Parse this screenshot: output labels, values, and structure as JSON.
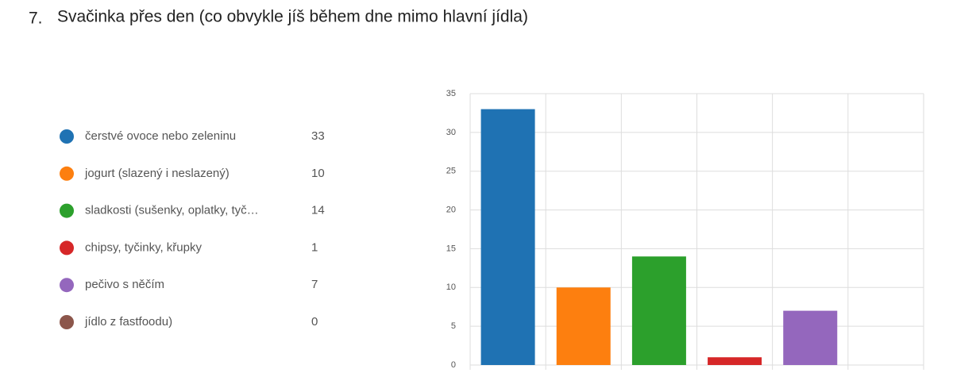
{
  "question": {
    "number": "7.",
    "title": "Svačinka přes den (co obvykle jíš během dne mimo hlavní jídla)"
  },
  "chart_data": {
    "type": "bar",
    "categories": [
      "čerstvé ovoce nebo zeleninu",
      "jogurt (slazený i neslazený)",
      "sladkosti (sušenky, oplatky, tyč…",
      "chipsy, tyčinky, křupky",
      "pečivo s něčím",
      "jídlo z fastfoodu)"
    ],
    "values": [
      33,
      10,
      14,
      1,
      7,
      0
    ],
    "colors": [
      "#1f72b3",
      "#fd7f0f",
      "#2ca02c",
      "#d62728",
      "#9467bd",
      "#8c564b"
    ],
    "ylim": [
      0,
      35
    ],
    "yticks": [
      0,
      5,
      10,
      15,
      20,
      25,
      30,
      35
    ],
    "grid": true
  }
}
